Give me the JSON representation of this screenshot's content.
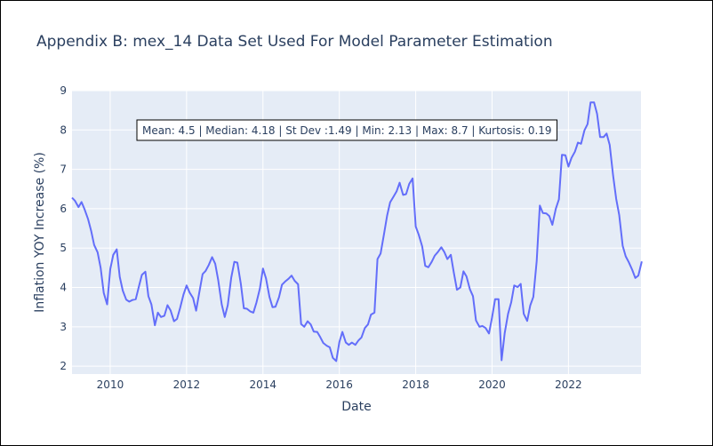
{
  "chart_data": {
    "type": "line",
    "title": "Appendix B: mex_14 Data Set Used For Model Parameter Estimation",
    "xlabel": "Date",
    "ylabel": "Inflation YOY Increase (%)",
    "xlim": [
      2009.0,
      2023.9
    ],
    "ylim": [
      1.8,
      9.0
    ],
    "x_ticks": [
      2010,
      2012,
      2014,
      2016,
      2018,
      2020,
      2022
    ],
    "y_ticks": [
      2,
      3,
      4,
      5,
      6,
      7,
      8,
      9
    ],
    "grid": true,
    "colors": {
      "line": "#636efa",
      "plot_bg": "#e5ecf6",
      "grid": "#ffffff",
      "text": "#2a3f5f"
    },
    "annotation": "Mean: 4.5 | Median: 4.18 | St Dev :1.49 | Min: 2.13 | Max: 8.7 | Kurtosis: 0.19",
    "series": [
      {
        "x": [
          2009.0,
          2009.08,
          2009.17,
          2009.25,
          2009.33,
          2009.42,
          2009.5,
          2009.58,
          2009.67,
          2009.75,
          2009.83,
          2009.92,
          2010.0,
          2010.08,
          2010.17,
          2010.25,
          2010.33,
          2010.42,
          2010.5,
          2010.58,
          2010.67,
          2010.75,
          2010.83,
          2010.92,
          2011.0,
          2011.08,
          2011.17,
          2011.25,
          2011.33,
          2011.42,
          2011.5,
          2011.58,
          2011.67,
          2011.75,
          2011.83,
          2011.92,
          2012.0,
          2012.08,
          2012.17,
          2012.25,
          2012.33,
          2012.42,
          2012.5,
          2012.58,
          2012.67,
          2012.75,
          2012.83,
          2012.92,
          2013.0,
          2013.08,
          2013.17,
          2013.25,
          2013.33,
          2013.42,
          2013.5,
          2013.58,
          2013.67,
          2013.75,
          2013.83,
          2013.92,
          2014.0,
          2014.08,
          2014.17,
          2014.25,
          2014.33,
          2014.42,
          2014.5,
          2014.58,
          2014.67,
          2014.75,
          2014.83,
          2014.92,
          2015.0,
          2015.08,
          2015.17,
          2015.25,
          2015.33,
          2015.42,
          2015.5,
          2015.58,
          2015.67,
          2015.75,
          2015.83,
          2015.92,
          2016.0,
          2016.08,
          2016.17,
          2016.25,
          2016.33,
          2016.42,
          2016.5,
          2016.58,
          2016.67,
          2016.75,
          2016.83,
          2016.92,
          2017.0,
          2017.08,
          2017.17,
          2017.25,
          2017.33,
          2017.42,
          2017.5,
          2017.58,
          2017.67,
          2017.75,
          2017.83,
          2017.92,
          2018.0,
          2018.08,
          2018.17,
          2018.25,
          2018.33,
          2018.42,
          2018.5,
          2018.58,
          2018.67,
          2018.75,
          2018.83,
          2018.92,
          2019.0,
          2019.08,
          2019.17,
          2019.25,
          2019.33,
          2019.42,
          2019.5,
          2019.58,
          2019.67,
          2019.75,
          2019.83,
          2019.92,
          2020.0,
          2020.08,
          2020.17,
          2020.25,
          2020.33,
          2020.42,
          2020.5,
          2020.58,
          2020.67,
          2020.75,
          2020.83,
          2020.92,
          2021.0,
          2021.08,
          2021.17,
          2021.25,
          2021.33,
          2021.42,
          2021.5,
          2021.58,
          2021.67,
          2021.75,
          2021.83,
          2021.92,
          2022.0,
          2022.08,
          2022.17,
          2022.25,
          2022.33,
          2022.42,
          2022.5,
          2022.58,
          2022.67,
          2022.75,
          2022.83,
          2022.92,
          2023.0,
          2023.08,
          2023.17,
          2023.25,
          2023.33,
          2023.42,
          2023.5,
          2023.58,
          2023.67,
          2023.75,
          2023.83,
          2023.92
        ],
        "values": [
          6.28,
          6.2,
          6.04,
          6.17,
          5.98,
          5.74,
          5.44,
          5.08,
          4.89,
          4.5,
          3.86,
          3.57,
          4.46,
          4.83,
          4.97,
          4.27,
          3.92,
          3.69,
          3.64,
          3.68,
          3.7,
          4.02,
          4.32,
          4.4,
          3.78,
          3.57,
          3.04,
          3.36,
          3.25,
          3.28,
          3.55,
          3.42,
          3.14,
          3.2,
          3.48,
          3.82,
          4.05,
          3.87,
          3.73,
          3.41,
          3.85,
          4.34,
          4.42,
          4.57,
          4.77,
          4.6,
          4.18,
          3.57,
          3.25,
          3.55,
          4.25,
          4.65,
          4.63,
          4.09,
          3.47,
          3.46,
          3.39,
          3.36,
          3.62,
          3.97,
          4.48,
          4.23,
          3.76,
          3.5,
          3.51,
          3.75,
          4.07,
          4.15,
          4.22,
          4.3,
          4.17,
          4.08,
          3.07,
          3.0,
          3.14,
          3.06,
          2.88,
          2.87,
          2.74,
          2.59,
          2.52,
          2.48,
          2.21,
          2.13,
          2.61,
          2.87,
          2.6,
          2.54,
          2.6,
          2.54,
          2.65,
          2.73,
          2.97,
          3.06,
          3.31,
          3.36,
          4.72,
          4.86,
          5.35,
          5.82,
          6.16,
          6.31,
          6.44,
          6.66,
          6.35,
          6.37,
          6.63,
          6.77,
          5.55,
          5.34,
          5.04,
          4.55,
          4.51,
          4.65,
          4.81,
          4.9,
          5.02,
          4.9,
          4.72,
          4.83,
          4.37,
          3.94,
          4.0,
          4.41,
          4.28,
          3.95,
          3.78,
          3.16,
          3.0,
          3.02,
          2.97,
          2.83,
          3.24,
          3.7,
          3.7,
          2.15,
          2.84,
          3.33,
          3.62,
          4.05,
          4.01,
          4.09,
          3.33,
          3.15,
          3.54,
          3.76,
          4.67,
          6.08,
          5.89,
          5.88,
          5.81,
          5.59,
          6.0,
          6.24,
          7.37,
          7.36,
          7.07,
          7.29,
          7.45,
          7.68,
          7.65,
          7.99,
          8.15,
          8.7,
          8.7,
          8.41,
          7.82,
          7.82,
          7.91,
          7.62,
          6.85,
          6.25,
          5.84,
          5.06,
          4.79,
          4.64,
          4.45,
          4.24,
          4.3,
          4.66
        ]
      }
    ]
  }
}
